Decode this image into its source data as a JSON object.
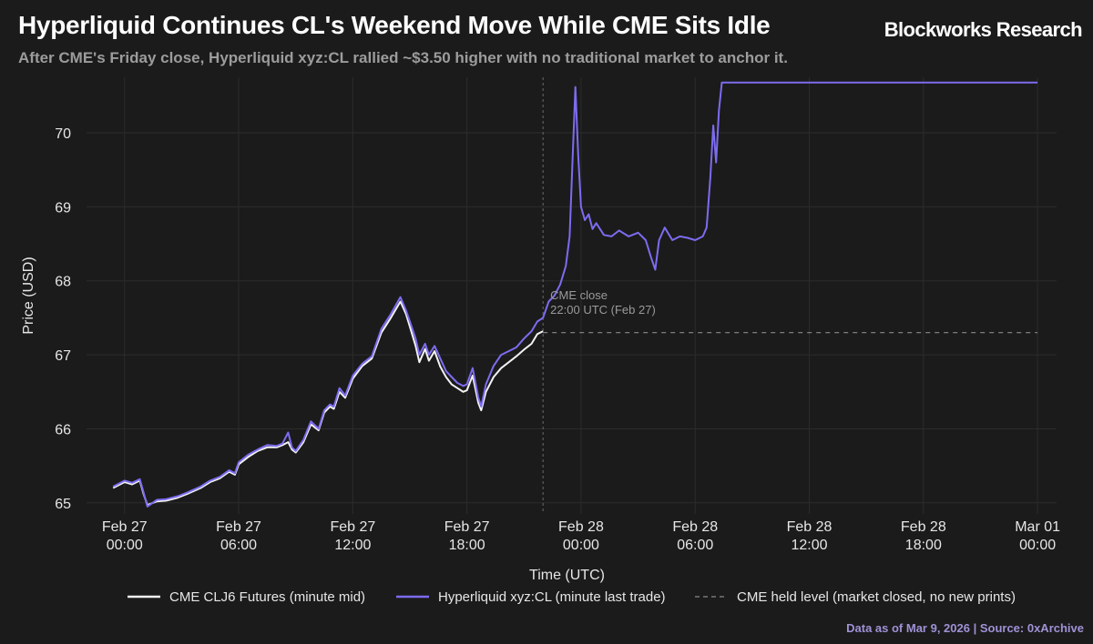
{
  "header": {
    "title": "Hyperliquid Continues CL's Weekend Move While CME Sits Idle",
    "brand": "Blockworks Research",
    "subtitle": "After CME's Friday close, Hyperliquid xyz:CL rallied ~$3.50 higher with no traditional market to anchor it."
  },
  "footer": {
    "source": "Data as of Mar 9, 2026 | Source: 0xArchive"
  },
  "colors": {
    "background": "#1b1b1b",
    "cme": "#f2f2f2",
    "hyperliquid": "#7c6cf0",
    "held_level": "#8a8a8a",
    "grid": "#2c2c2c",
    "text": "#e6e6e6",
    "annotation": "#9a9a9a"
  },
  "chart_data": {
    "type": "line",
    "title": "Hyperliquid Continues CL's Weekend Move While CME Sits Idle",
    "xlabel": "Time (UTC)",
    "ylabel": "Price (USD)",
    "x_unit": "hours since Feb 27 00:00 UTC",
    "xlim": [
      -2,
      49
    ],
    "ylim": [
      64.85,
      70.75
    ],
    "grid": true,
    "legend_position": "bottom",
    "x_ticks": [
      {
        "value": 0,
        "label": [
          "Feb 27",
          "00:00"
        ]
      },
      {
        "value": 6,
        "label": [
          "Feb 27",
          "06:00"
        ]
      },
      {
        "value": 12,
        "label": [
          "Feb 27",
          "12:00"
        ]
      },
      {
        "value": 18,
        "label": [
          "Feb 27",
          "18:00"
        ]
      },
      {
        "value": 24,
        "label": [
          "Feb 28",
          "00:00"
        ]
      },
      {
        "value": 30,
        "label": [
          "Feb 28",
          "06:00"
        ]
      },
      {
        "value": 36,
        "label": [
          "Feb 28",
          "12:00"
        ]
      },
      {
        "value": 42,
        "label": [
          "Feb 28",
          "18:00"
        ]
      },
      {
        "value": 48,
        "label": [
          "Mar 01",
          "00:00"
        ]
      }
    ],
    "y_ticks": [
      65,
      66,
      67,
      68,
      69,
      70
    ],
    "series": [
      {
        "name": "CME CLJ6 Futures (minute mid)",
        "color": "#f2f2f2",
        "style": "solid",
        "points": [
          [
            -0.6,
            65.2
          ],
          [
            0.0,
            65.28
          ],
          [
            0.4,
            65.25
          ],
          [
            0.8,
            65.3
          ],
          [
            1.0,
            65.12
          ],
          [
            1.2,
            64.97
          ],
          [
            1.7,
            65.02
          ],
          [
            2.2,
            65.03
          ],
          [
            2.8,
            65.07
          ],
          [
            3.3,
            65.12
          ],
          [
            4.0,
            65.2
          ],
          [
            4.5,
            65.28
          ],
          [
            5.0,
            65.33
          ],
          [
            5.5,
            65.42
          ],
          [
            5.8,
            65.38
          ],
          [
            6.0,
            65.52
          ],
          [
            6.5,
            65.62
          ],
          [
            7.0,
            65.7
          ],
          [
            7.5,
            65.75
          ],
          [
            8.0,
            65.75
          ],
          [
            8.3,
            65.78
          ],
          [
            8.6,
            65.82
          ],
          [
            8.8,
            65.72
          ],
          [
            9.0,
            65.68
          ],
          [
            9.4,
            65.82
          ],
          [
            9.8,
            66.06
          ],
          [
            10.2,
            65.98
          ],
          [
            10.5,
            66.22
          ],
          [
            10.8,
            66.3
          ],
          [
            11.0,
            66.27
          ],
          [
            11.3,
            66.5
          ],
          [
            11.6,
            66.42
          ],
          [
            12.0,
            66.68
          ],
          [
            12.5,
            66.85
          ],
          [
            13.0,
            66.95
          ],
          [
            13.5,
            67.3
          ],
          [
            14.0,
            67.5
          ],
          [
            14.5,
            67.72
          ],
          [
            14.8,
            67.55
          ],
          [
            15.0,
            67.38
          ],
          [
            15.3,
            67.12
          ],
          [
            15.5,
            66.9
          ],
          [
            15.8,
            67.08
          ],
          [
            16.0,
            66.92
          ],
          [
            16.3,
            67.05
          ],
          [
            16.6,
            66.84
          ],
          [
            16.9,
            66.7
          ],
          [
            17.2,
            66.6
          ],
          [
            17.5,
            66.55
          ],
          [
            17.8,
            66.5
          ],
          [
            18.0,
            66.52
          ],
          [
            18.3,
            66.72
          ],
          [
            18.6,
            66.35
          ],
          [
            18.75,
            66.25
          ],
          [
            19.0,
            66.5
          ],
          [
            19.4,
            66.7
          ],
          [
            19.8,
            66.82
          ],
          [
            20.2,
            66.9
          ],
          [
            20.6,
            66.98
          ],
          [
            21.0,
            67.07
          ],
          [
            21.4,
            67.15
          ],
          [
            21.7,
            67.28
          ],
          [
            22.0,
            67.32
          ]
        ]
      },
      {
        "name": "Hyperliquid xyz:CL (minute last trade)",
        "color": "#7c6cf0",
        "style": "solid",
        "points": [
          [
            -0.6,
            65.22
          ],
          [
            0.0,
            65.3
          ],
          [
            0.4,
            65.27
          ],
          [
            0.8,
            65.32
          ],
          [
            1.0,
            65.14
          ],
          [
            1.2,
            64.95
          ],
          [
            1.7,
            65.04
          ],
          [
            2.2,
            65.05
          ],
          [
            2.8,
            65.09
          ],
          [
            3.3,
            65.14
          ],
          [
            4.0,
            65.22
          ],
          [
            4.5,
            65.3
          ],
          [
            5.0,
            65.35
          ],
          [
            5.5,
            65.44
          ],
          [
            5.8,
            65.4
          ],
          [
            6.0,
            65.55
          ],
          [
            6.5,
            65.65
          ],
          [
            7.0,
            65.72
          ],
          [
            7.5,
            65.78
          ],
          [
            8.0,
            65.77
          ],
          [
            8.3,
            65.8
          ],
          [
            8.6,
            65.95
          ],
          [
            8.8,
            65.75
          ],
          [
            9.0,
            65.7
          ],
          [
            9.4,
            65.85
          ],
          [
            9.8,
            66.1
          ],
          [
            10.2,
            66.0
          ],
          [
            10.5,
            66.25
          ],
          [
            10.8,
            66.33
          ],
          [
            11.0,
            66.3
          ],
          [
            11.3,
            66.55
          ],
          [
            11.6,
            66.45
          ],
          [
            12.0,
            66.72
          ],
          [
            12.5,
            66.88
          ],
          [
            13.0,
            66.98
          ],
          [
            13.5,
            67.35
          ],
          [
            14.0,
            67.55
          ],
          [
            14.5,
            67.78
          ],
          [
            14.8,
            67.6
          ],
          [
            15.0,
            67.45
          ],
          [
            15.3,
            67.22
          ],
          [
            15.5,
            67.0
          ],
          [
            15.8,
            67.15
          ],
          [
            16.0,
            67.0
          ],
          [
            16.3,
            67.12
          ],
          [
            16.6,
            66.95
          ],
          [
            16.9,
            66.78
          ],
          [
            17.2,
            66.7
          ],
          [
            17.5,
            66.62
          ],
          [
            17.8,
            66.58
          ],
          [
            18.0,
            66.6
          ],
          [
            18.3,
            66.82
          ],
          [
            18.6,
            66.42
          ],
          [
            18.75,
            66.3
          ],
          [
            19.0,
            66.6
          ],
          [
            19.4,
            66.85
          ],
          [
            19.8,
            67.0
          ],
          [
            20.2,
            67.05
          ],
          [
            20.6,
            67.1
          ],
          [
            21.0,
            67.22
          ],
          [
            21.4,
            67.32
          ],
          [
            21.7,
            67.45
          ],
          [
            22.0,
            67.5
          ],
          [
            22.3,
            67.72
          ],
          [
            22.6,
            67.8
          ],
          [
            22.9,
            67.95
          ],
          [
            23.2,
            68.2
          ],
          [
            23.4,
            68.6
          ],
          [
            23.55,
            69.6
          ],
          [
            23.7,
            70.62
          ],
          [
            23.85,
            69.7
          ],
          [
            24.0,
            69.0
          ],
          [
            24.2,
            68.82
          ],
          [
            24.4,
            68.9
          ],
          [
            24.6,
            68.7
          ],
          [
            24.8,
            68.78
          ],
          [
            25.2,
            68.62
          ],
          [
            25.6,
            68.6
          ],
          [
            26.0,
            68.68
          ],
          [
            26.5,
            68.6
          ],
          [
            27.0,
            68.65
          ],
          [
            27.4,
            68.55
          ],
          [
            27.7,
            68.3
          ],
          [
            27.9,
            68.15
          ],
          [
            28.1,
            68.55
          ],
          [
            28.4,
            68.72
          ],
          [
            28.8,
            68.55
          ],
          [
            29.2,
            68.6
          ],
          [
            29.6,
            68.58
          ],
          [
            30.0,
            68.55
          ],
          [
            30.4,
            68.6
          ],
          [
            30.6,
            68.72
          ],
          [
            30.8,
            69.4
          ],
          [
            30.95,
            70.1
          ],
          [
            31.1,
            69.6
          ],
          [
            31.25,
            70.3
          ],
          [
            31.4,
            70.68
          ],
          [
            31.7,
            70.68
          ],
          [
            33.0,
            70.68
          ],
          [
            35.0,
            70.68
          ],
          [
            38.0,
            70.68
          ],
          [
            41.0,
            70.68
          ],
          [
            44.0,
            70.68
          ],
          [
            47.0,
            70.68
          ],
          [
            48.0,
            70.68
          ]
        ]
      },
      {
        "name": "CME held level (market closed, no new prints)",
        "color": "#8a8a8a",
        "style": "dashed",
        "points": [
          [
            22.0,
            67.3
          ],
          [
            48.0,
            67.3
          ]
        ]
      }
    ],
    "annotations": [
      {
        "text": [
          "CME close",
          "22:00 UTC (Feb 27)"
        ],
        "x": 22.0,
        "y": 67.8,
        "type": "vertical_dashed_line"
      }
    ]
  }
}
